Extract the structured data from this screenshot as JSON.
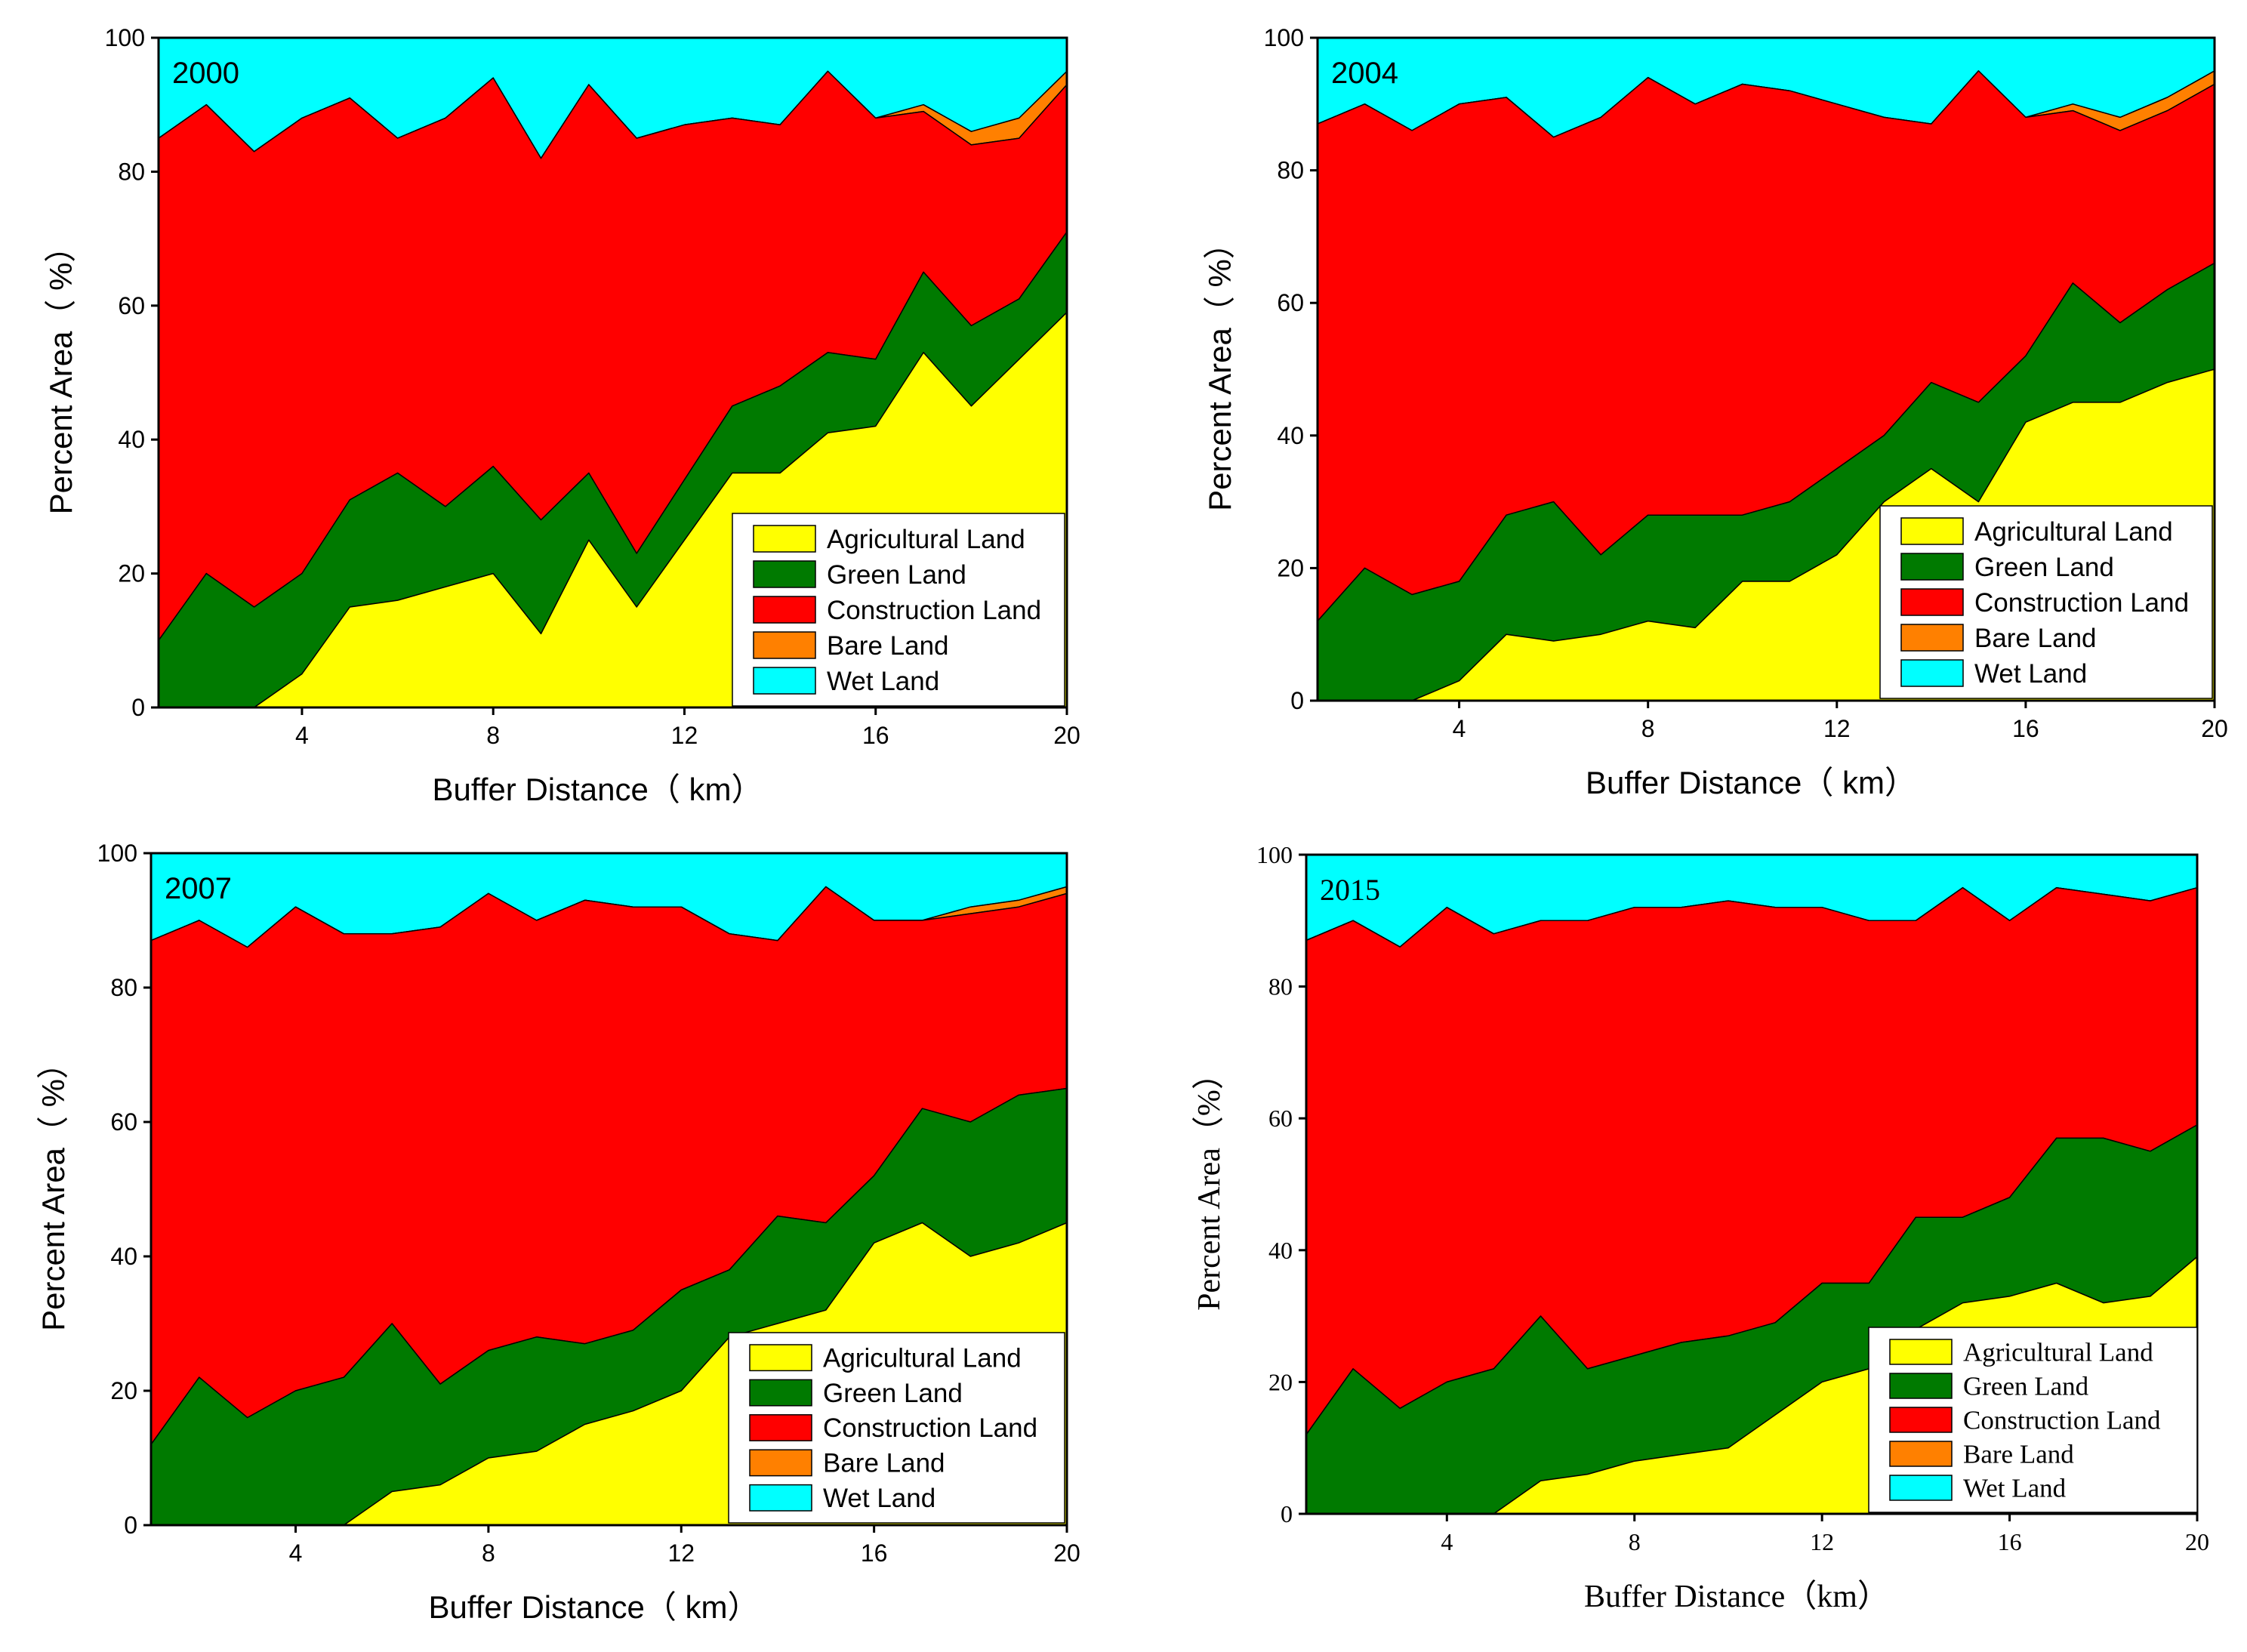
{
  "colors": {
    "agricultural": "#ffff00",
    "green": "#007a00",
    "construction": "#ff0000",
    "bare": "#ff8000",
    "wet": "#00ffff"
  },
  "chart_data": [
    {
      "type": "area",
      "stacked": true,
      "title": "2000",
      "xlabel": "Buffer Distance（ km）",
      "ylabel": "Percent Area（ %）",
      "xlim": [
        1,
        20
      ],
      "ylim": [
        0,
        100
      ],
      "xticks": [
        4,
        8,
        12,
        16,
        20
      ],
      "yticks": [
        0,
        20,
        40,
        60,
        80,
        100
      ],
      "x": [
        1,
        2,
        3,
        4,
        5,
        6,
        7,
        8,
        9,
        10,
        11,
        12,
        13,
        14,
        15,
        16,
        17,
        18,
        19,
        20
      ],
      "cumulative_series": [
        {
          "name": "Agricultural Land",
          "key": "agricultural",
          "values": [
            0,
            0,
            0,
            5,
            15,
            16,
            18,
            20,
            11,
            25,
            15,
            25,
            35,
            35,
            41,
            42,
            53,
            45,
            52,
            59
          ]
        },
        {
          "name": "Green Land",
          "key": "green",
          "values": [
            10,
            20,
            15,
            20,
            31,
            35,
            30,
            36,
            28,
            35,
            23,
            34,
            45,
            48,
            53,
            52,
            65,
            57,
            61,
            71
          ]
        },
        {
          "name": "Construction Land",
          "key": "construction",
          "values": [
            85,
            90,
            83,
            88,
            91,
            85,
            88,
            94,
            82,
            93,
            85,
            87,
            88,
            87,
            95,
            88,
            89,
            84,
            85,
            93
          ]
        },
        {
          "name": "Bare Land",
          "key": "bare",
          "values": [
            85,
            90,
            83,
            88,
            91,
            85,
            88,
            94,
            82,
            93,
            85,
            87,
            88,
            87,
            95,
            88,
            90,
            86,
            88,
            95
          ]
        },
        {
          "name": "Wet Land",
          "key": "wet",
          "values": [
            100,
            100,
            100,
            100,
            100,
            100,
            100,
            100,
            100,
            100,
            100,
            100,
            100,
            100,
            100,
            100,
            100,
            100,
            100,
            100
          ]
        }
      ],
      "legend": [
        "Agricultural Land",
        "Green Land",
        "Construction Land",
        "Bare Land",
        "Wet Land"
      ]
    },
    {
      "type": "area",
      "stacked": true,
      "title": "2004",
      "xlabel": "Buffer Distance（ km）",
      "ylabel": "Percent Area（ %）",
      "xlim": [
        1,
        20
      ],
      "ylim": [
        0,
        100
      ],
      "xticks": [
        4,
        8,
        12,
        16,
        20
      ],
      "yticks": [
        0,
        20,
        40,
        60,
        80,
        100
      ],
      "x": [
        1,
        2,
        3,
        4,
        5,
        6,
        7,
        8,
        9,
        10,
        11,
        12,
        13,
        14,
        15,
        16,
        17,
        18,
        19,
        20
      ],
      "cumulative_series": [
        {
          "name": "Agricultural Land",
          "key": "agricultural",
          "values": [
            0,
            0,
            0,
            3,
            10,
            9,
            10,
            12,
            11,
            18,
            18,
            22,
            30,
            35,
            30,
            42,
            45,
            45,
            48,
            50
          ]
        },
        {
          "name": "Green Land",
          "key": "green",
          "values": [
            12,
            20,
            16,
            18,
            28,
            30,
            22,
            28,
            28,
            28,
            30,
            35,
            40,
            48,
            45,
            52,
            63,
            57,
            62,
            66
          ]
        },
        {
          "name": "Construction Land",
          "key": "construction",
          "values": [
            87,
            90,
            86,
            90,
            91,
            85,
            88,
            94,
            90,
            93,
            92,
            90,
            88,
            87,
            95,
            88,
            89,
            86,
            89,
            93
          ]
        },
        {
          "name": "Bare Land",
          "key": "bare",
          "values": [
            87,
            90,
            86,
            90,
            91,
            85,
            88,
            94,
            90,
            93,
            92,
            90,
            88,
            87,
            95,
            88,
            90,
            88,
            91,
            95
          ]
        },
        {
          "name": "Wet Land",
          "key": "wet",
          "values": [
            100,
            100,
            100,
            100,
            100,
            100,
            100,
            100,
            100,
            100,
            100,
            100,
            100,
            100,
            100,
            100,
            100,
            100,
            100,
            100
          ]
        }
      ],
      "legend": [
        "Agricultural Land",
        "Green Land",
        "Construction Land",
        "Bare Land",
        "Wet Land"
      ]
    },
    {
      "type": "area",
      "stacked": true,
      "title": "2007",
      "xlabel": "Buffer Distance（ km）",
      "ylabel": "Percent Area（ %）",
      "xlim": [
        1,
        20
      ],
      "ylim": [
        0,
        100
      ],
      "xticks": [
        4,
        8,
        12,
        16,
        20
      ],
      "yticks": [
        0,
        20,
        40,
        60,
        80,
        100
      ],
      "x": [
        1,
        2,
        3,
        4,
        5,
        6,
        7,
        8,
        9,
        10,
        11,
        12,
        13,
        14,
        15,
        16,
        17,
        18,
        19,
        20
      ],
      "cumulative_series": [
        {
          "name": "Agricultural Land",
          "key": "agricultural",
          "values": [
            0,
            0,
            0,
            0,
            0,
            5,
            6,
            10,
            11,
            15,
            17,
            20,
            28,
            30,
            32,
            42,
            45,
            40,
            42,
            45
          ]
        },
        {
          "name": "Green Land",
          "key": "green",
          "values": [
            12,
            22,
            16,
            20,
            22,
            30,
            21,
            26,
            28,
            27,
            29,
            35,
            38,
            46,
            45,
            52,
            62,
            60,
            64,
            65
          ]
        },
        {
          "name": "Construction Land",
          "key": "construction",
          "values": [
            87,
            90,
            86,
            92,
            88,
            88,
            89,
            94,
            90,
            93,
            92,
            92,
            88,
            87,
            95,
            90,
            90,
            91,
            92,
            94
          ]
        },
        {
          "name": "Bare Land",
          "key": "bare",
          "values": [
            87,
            90,
            86,
            92,
            88,
            88,
            89,
            94,
            90,
            93,
            92,
            92,
            88,
            87,
            95,
            90,
            90,
            92,
            93,
            95
          ]
        },
        {
          "name": "Wet Land",
          "key": "wet",
          "values": [
            100,
            100,
            100,
            100,
            100,
            100,
            100,
            100,
            100,
            100,
            100,
            100,
            100,
            100,
            100,
            100,
            100,
            100,
            100,
            100
          ]
        }
      ],
      "legend": [
        "Agricultural Land",
        "Green Land",
        "Construction Land",
        "Bare Land",
        "Wet Land"
      ]
    },
    {
      "type": "area",
      "stacked": true,
      "title": "2015",
      "xlabel": "Buffer Distance（km）",
      "ylabel": "Percent Area（%）",
      "xlim": [
        1,
        20
      ],
      "ylim": [
        0,
        100
      ],
      "xticks": [
        4,
        8,
        12,
        16,
        20
      ],
      "yticks": [
        0,
        20,
        40,
        60,
        80,
        100
      ],
      "x": [
        1,
        2,
        3,
        4,
        5,
        6,
        7,
        8,
        9,
        10,
        11,
        12,
        13,
        14,
        15,
        16,
        17,
        18,
        19,
        20
      ],
      "cumulative_series": [
        {
          "name": "Agricultural Land",
          "key": "agricultural",
          "values": [
            0,
            0,
            0,
            0,
            0,
            5,
            6,
            8,
            9,
            10,
            15,
            20,
            22,
            28,
            32,
            33,
            35,
            32,
            33,
            39
          ]
        },
        {
          "name": "Green Land",
          "key": "green",
          "values": [
            12,
            22,
            16,
            20,
            22,
            30,
            22,
            24,
            26,
            27,
            29,
            35,
            35,
            45,
            45,
            48,
            57,
            57,
            55,
            59
          ]
        },
        {
          "name": "Construction Land",
          "key": "construction",
          "values": [
            87,
            90,
            86,
            92,
            88,
            90,
            90,
            92,
            92,
            93,
            92,
            92,
            90,
            90,
            95,
            90,
            95,
            94,
            93,
            95
          ]
        },
        {
          "name": "Bare Land",
          "key": "bare",
          "values": [
            87,
            90,
            86,
            92,
            88,
            90,
            90,
            92,
            92,
            93,
            92,
            92,
            90,
            90,
            95,
            90,
            95,
            94,
            93,
            95
          ]
        },
        {
          "name": "Wet Land",
          "key": "wet",
          "values": [
            100,
            100,
            100,
            100,
            100,
            100,
            100,
            100,
            100,
            100,
            100,
            100,
            100,
            100,
            100,
            100,
            100,
            100,
            100,
            100
          ]
        }
      ],
      "legend": [
        "Agricultural Land",
        "Green Land",
        "Construction Land",
        "Bare Land",
        "Wet Land"
      ]
    }
  ]
}
